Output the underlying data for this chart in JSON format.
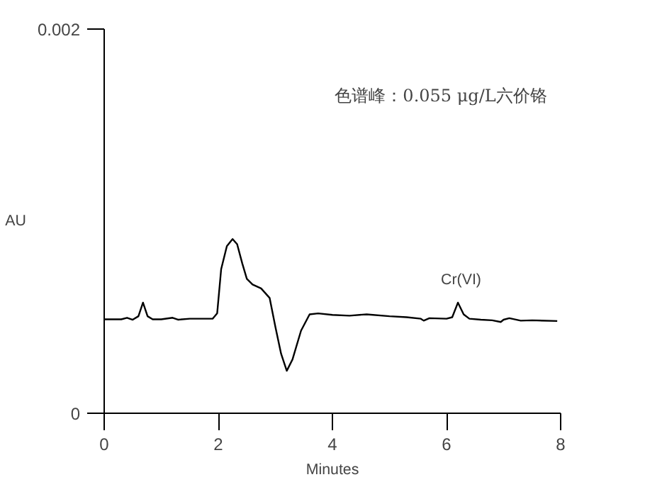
{
  "chart_data": {
    "type": "line",
    "xlabel": "Minutes",
    "ylabel": "AU",
    "xlim": [
      0,
      8
    ],
    "xticks": [
      0,
      2,
      4,
      6,
      8
    ],
    "ylim": [
      0,
      0.002
    ],
    "yticks": [
      0,
      0.002
    ],
    "grid": false,
    "marker": "none",
    "line_style": "solid",
    "annotations": [
      "色谱峰：0.055 μg/L六价铬",
      {
        "text": "Cr(VI)",
        "x": 6.2,
        "y": 0.000576
      }
    ],
    "series": [
      {
        "color": "#000000",
        "x": [
          0,
          0.3,
          0.4,
          0.5,
          0.6,
          0.68,
          0.76,
          0.85,
          1.0,
          1.2,
          1.3,
          1.5,
          1.9,
          1.98,
          2.05,
          2.15,
          2.25,
          2.33,
          2.42,
          2.5,
          2.6,
          2.75,
          2.9,
          3.0,
          3.1,
          3.2,
          3.3,
          3.45,
          3.6,
          3.75,
          4.0,
          4.3,
          4.6,
          5.0,
          5.3,
          5.55,
          5.6,
          5.7,
          6.0,
          6.1,
          6.2,
          6.3,
          6.4,
          6.6,
          6.8,
          6.95,
          7.0,
          7.1,
          7.3,
          7.5,
          7.94
        ],
        "values": [
          0.000489,
          0.000489,
          0.000497,
          0.000487,
          0.000505,
          0.000576,
          0.000505,
          0.000489,
          0.000489,
          0.000497,
          0.000487,
          0.000492,
          0.000492,
          0.00052,
          0.00075,
          0.00087,
          0.000907,
          0.00088,
          0.00078,
          0.0007,
          0.00067,
          0.00065,
          0.0006,
          0.00045,
          0.00031,
          0.000221,
          0.00028,
          0.00043,
          0.000515,
          0.00052,
          0.000512,
          0.000508,
          0.000515,
          0.000505,
          0.0005,
          0.000492,
          0.000482,
          0.000495,
          0.000492,
          0.0005,
          0.000576,
          0.000515,
          0.000492,
          0.000487,
          0.000484,
          0.000475,
          0.000487,
          0.000495,
          0.000482,
          0.000484,
          0.00048
        ]
      }
    ]
  }
}
